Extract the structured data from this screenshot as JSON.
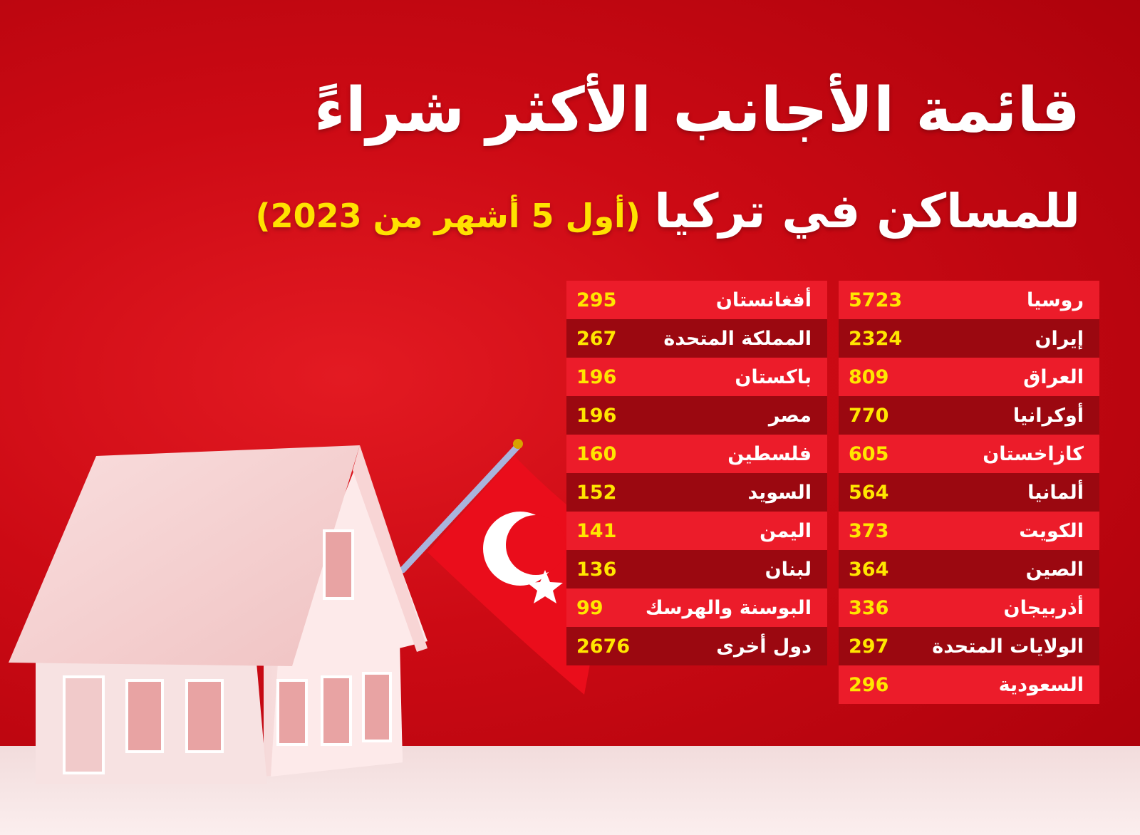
{
  "title": {
    "line1": "قائمة الأجانب الأكثر شراءً",
    "line2": "للمساكن في تركيا",
    "period": "(أول 5 أشهر من 2023)"
  },
  "colors": {
    "background": "#cc0a14",
    "row_light": "#ec1c2a",
    "row_dark": "#9b0810",
    "value_text": "#ffe600",
    "title_text": "#ffffff",
    "period_text": "#ffe200"
  },
  "icons": [
    "house-illustration",
    "turkish-flag"
  ],
  "table_right": [
    {
      "country": "روسيا",
      "value": "5723"
    },
    {
      "country": "إيران",
      "value": "2324"
    },
    {
      "country": "العراق",
      "value": "809"
    },
    {
      "country": "أوكرانيا",
      "value": "770"
    },
    {
      "country": "كازاخستان",
      "value": "605"
    },
    {
      "country": "ألمانيا",
      "value": "564"
    },
    {
      "country": "الكويت",
      "value": "373"
    },
    {
      "country": "الصين",
      "value": "364"
    },
    {
      "country": "أذربيجان",
      "value": "336"
    },
    {
      "country": "الولايات المتحدة",
      "value": "297"
    },
    {
      "country": "السعودية",
      "value": "296"
    }
  ],
  "table_left": [
    {
      "country": "أفغانستان",
      "value": "295"
    },
    {
      "country": "المملكة المتحدة",
      "value": "267"
    },
    {
      "country": "باكستان",
      "value": "196"
    },
    {
      "country": "مصر",
      "value": "196"
    },
    {
      "country": "فلسطين",
      "value": "160"
    },
    {
      "country": "السويد",
      "value": "152"
    },
    {
      "country": "اليمن",
      "value": "141"
    },
    {
      "country": "لبنان",
      "value": "136"
    },
    {
      "country": "البوسنة والهرسك",
      "value": "99"
    },
    {
      "country": "دول أخرى",
      "value": "2676"
    }
  ]
}
